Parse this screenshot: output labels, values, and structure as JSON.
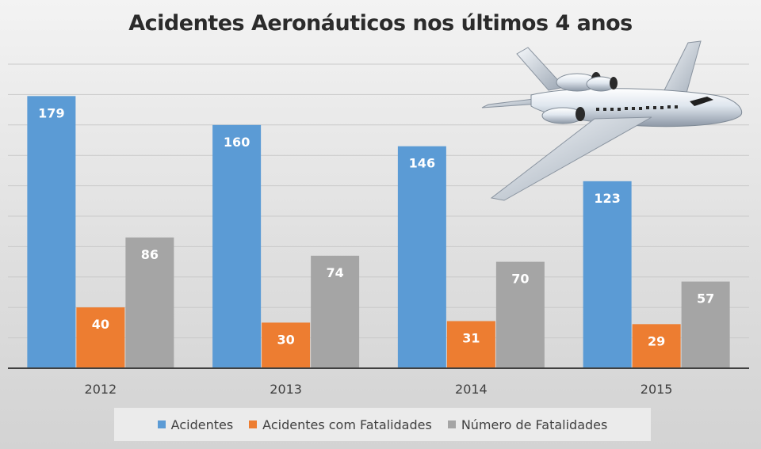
{
  "chart_data": {
    "type": "bar",
    "title": "Acidentes Aeronáuticos nos últimos 4 anos",
    "categories": [
      "2012",
      "2013",
      "2014",
      "2015"
    ],
    "series": [
      {
        "name": "Acidentes",
        "values": [
          179,
          160,
          146,
          123
        ],
        "color": "#5b9bd5"
      },
      {
        "name": "Acidentes com Fatalidades",
        "values": [
          40,
          30,
          31,
          29
        ],
        "color": "#ed7d31"
      },
      {
        "name": "Número de Fatalidades",
        "values": [
          86,
          74,
          70,
          57
        ],
        "color": "#a5a5a5"
      }
    ],
    "ylim": [
      0,
      200
    ],
    "grid": true,
    "legend_position": "bottom",
    "data_labels": true
  },
  "decoration": {
    "icon": "airplane-icon"
  }
}
